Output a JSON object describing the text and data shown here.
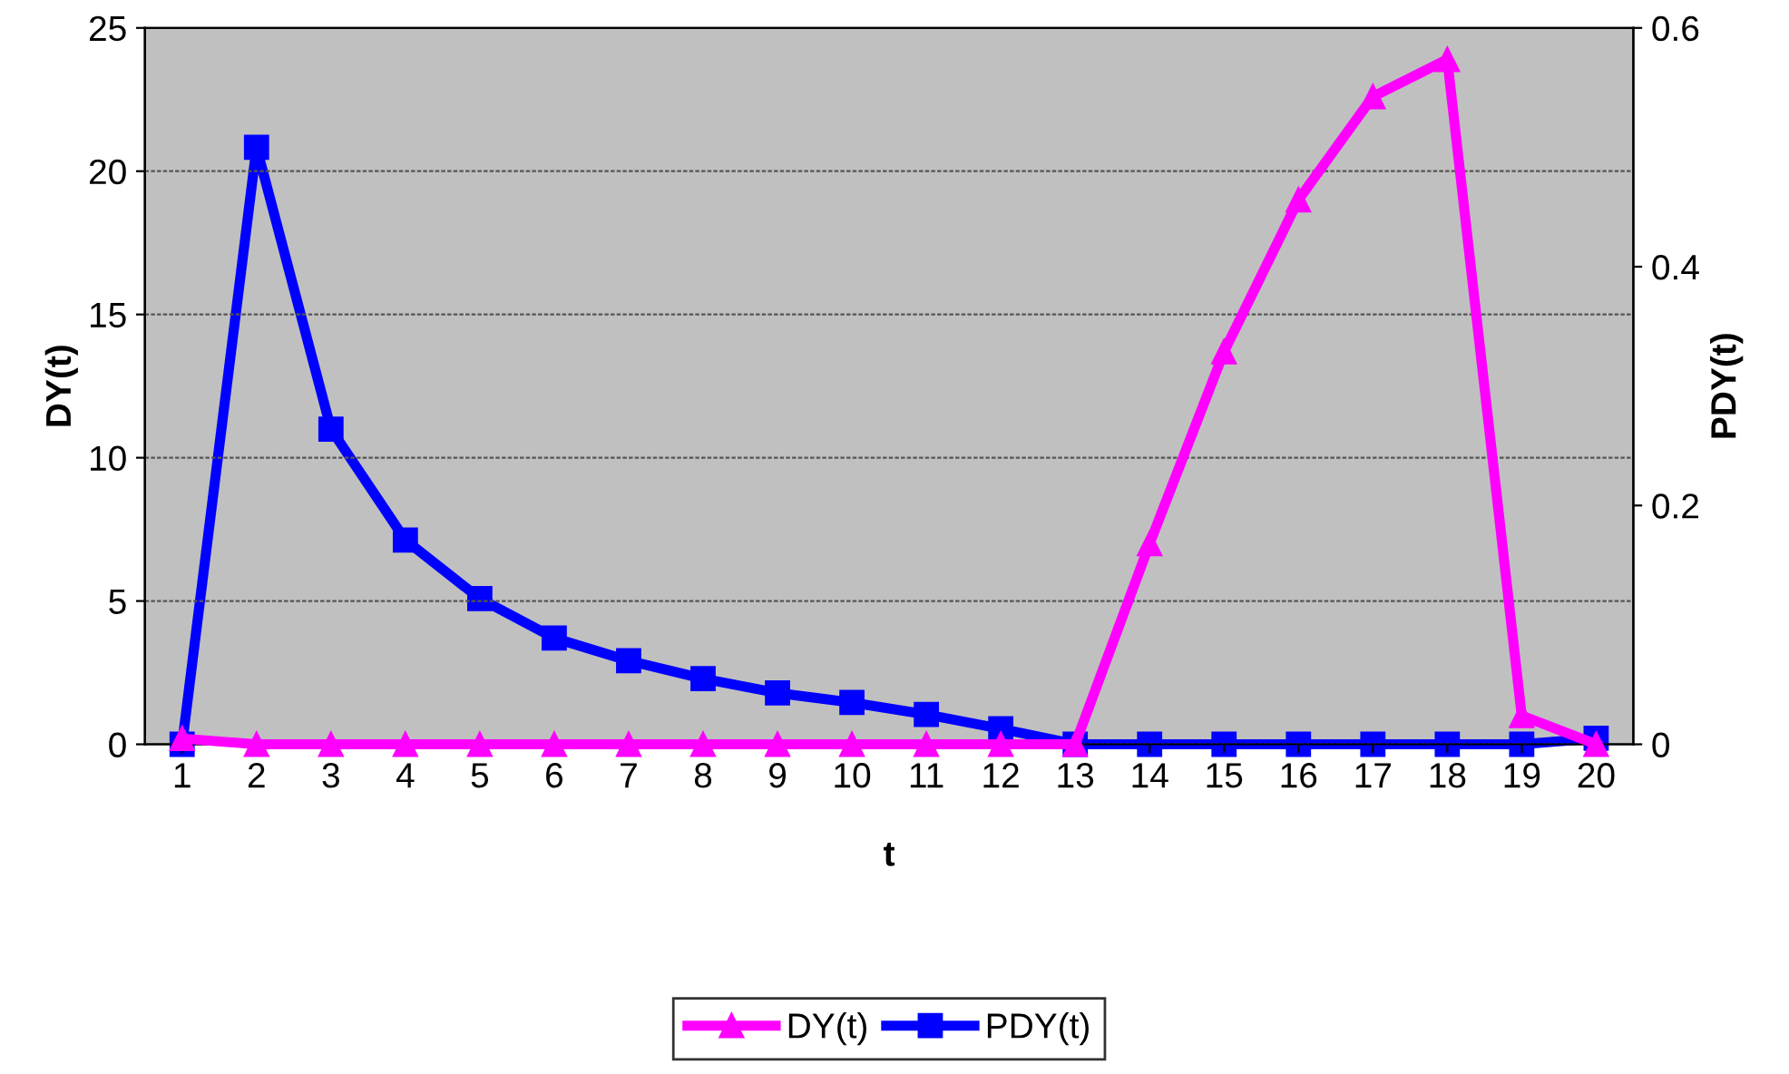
{
  "chart_data": {
    "type": "line",
    "xlabel": "t",
    "ylabel": "DY(t)",
    "y2label": "PDY(t)",
    "categories": [
      "1",
      "2",
      "3",
      "4",
      "5",
      "6",
      "7",
      "8",
      "9",
      "10",
      "11",
      "12",
      "13",
      "14",
      "15",
      "16",
      "17",
      "18",
      "19",
      "20"
    ],
    "series": [
      {
        "name": "DY(t)",
        "color": "#ff00ff",
        "marker": "triangle",
        "values": [
          0.2,
          0,
          0,
          0,
          0,
          0,
          0,
          0,
          0,
          0,
          0,
          0,
          0,
          7.0,
          13.7,
          19.0,
          22.6,
          23.9,
          1.0,
          0
        ]
      },
      {
        "name": "PDY(t)",
        "color": "#0000ff",
        "marker": "square",
        "axis": "y2",
        "values": [
          0,
          0.5,
          0.264,
          0.171,
          0.122,
          0.089,
          0.07,
          0.055,
          0.043,
          0.035,
          0.025,
          0.013,
          0,
          0,
          0,
          0,
          0,
          0,
          0,
          0.005
        ]
      }
    ],
    "ylim": [
      0,
      25
    ],
    "yticks": [
      0,
      5,
      10,
      15,
      20,
      25
    ],
    "y2lim": [
      0,
      0.6
    ],
    "y2ticks": [
      0,
      0.2,
      0.4,
      0.6
    ],
    "grid": "y",
    "legend": "bottom",
    "line_style": "solid"
  }
}
